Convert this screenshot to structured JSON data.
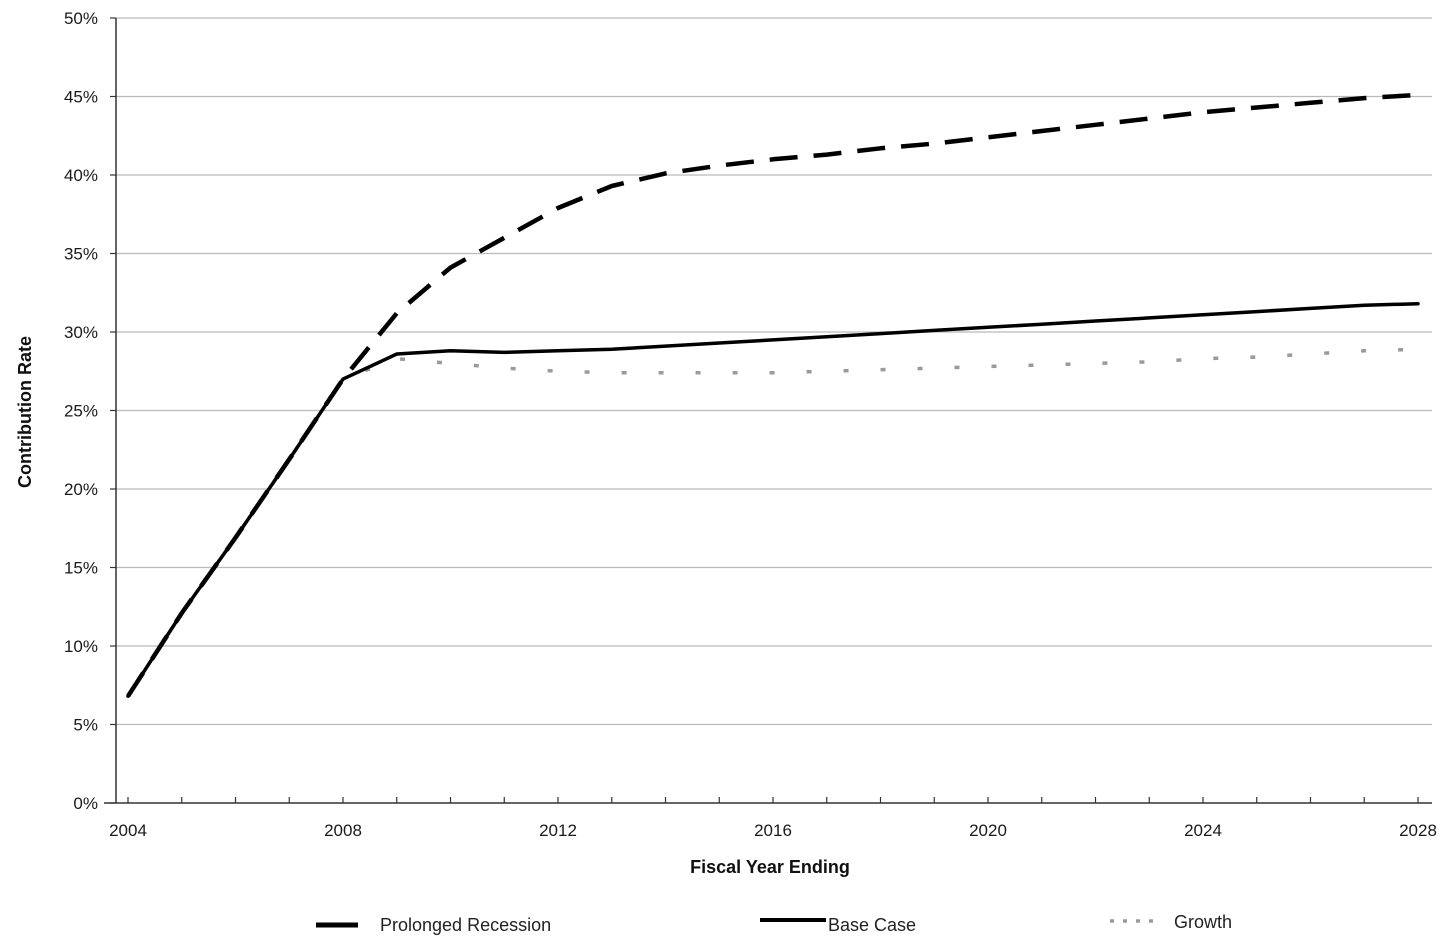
{
  "chart_data": {
    "type": "line",
    "title": "",
    "xlabel": "Fiscal Year Ending",
    "ylabel": "Contribution Rate",
    "xlim": [
      2004,
      2028
    ],
    "ylim": [
      0,
      50
    ],
    "x_ticks": [
      "2004",
      "2008",
      "2012",
      "2016",
      "2020",
      "2024",
      "2028"
    ],
    "y_ticks": [
      "0%",
      "5%",
      "10%",
      "15%",
      "20%",
      "25%",
      "30%",
      "35%",
      "40%",
      "45%",
      "50%"
    ],
    "grid": true,
    "legend_position": "bottom",
    "x": [
      2004,
      2005,
      2006,
      2007,
      2008,
      2009,
      2010,
      2011,
      2012,
      2013,
      2014,
      2015,
      2016,
      2017,
      2018,
      2019,
      2020,
      2021,
      2022,
      2023,
      2024,
      2025,
      2026,
      2027,
      2028
    ],
    "series": [
      {
        "name": "Prolonged Recession",
        "style": "dashed",
        "color": "#000000",
        "values": [
          6.8,
          12.1,
          16.9,
          21.9,
          27.0,
          31.2,
          34.1,
          36.0,
          37.9,
          39.3,
          40.1,
          40.6,
          41.0,
          41.3,
          41.7,
          42.0,
          42.4,
          42.8,
          43.2,
          43.6,
          44.0,
          44.3,
          44.6,
          44.9,
          45.1
        ]
      },
      {
        "name": "Base Case",
        "style": "solid",
        "color": "#000000",
        "values": [
          6.8,
          12.1,
          16.9,
          21.9,
          27.0,
          28.6,
          28.8,
          28.7,
          28.8,
          28.9,
          29.1,
          29.3,
          29.5,
          29.7,
          29.9,
          30.1,
          30.3,
          30.5,
          30.7,
          30.9,
          31.1,
          31.3,
          31.5,
          31.7,
          31.8
        ]
      },
      {
        "name": "Growth",
        "style": "dotted",
        "color": "#9a9a9a",
        "values": [
          6.8,
          12.1,
          16.9,
          21.9,
          27.0,
          28.3,
          28.0,
          27.7,
          27.5,
          27.4,
          27.4,
          27.4,
          27.4,
          27.5,
          27.6,
          27.7,
          27.8,
          27.9,
          28.0,
          28.1,
          28.3,
          28.4,
          28.6,
          28.8,
          28.9
        ]
      }
    ]
  }
}
